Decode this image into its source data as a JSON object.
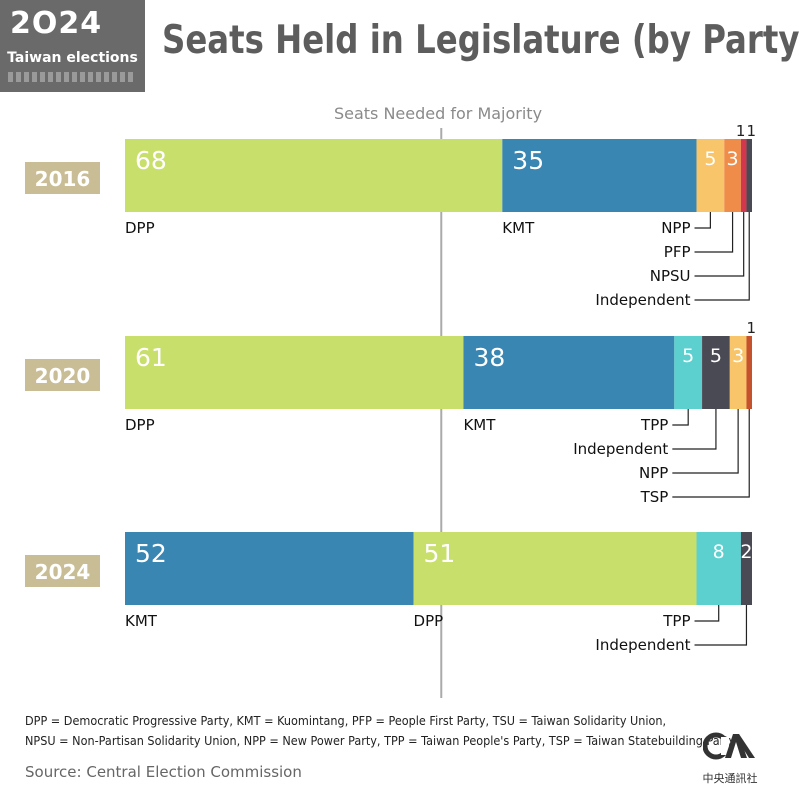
{
  "badge": {
    "year": "2O24",
    "subtitle": "Taiwan elections"
  },
  "header": {
    "title": "Seats Held in Legislature (by Party)"
  },
  "colors": {
    "DPP": "#c9df6b",
    "KMT": "#3a86b3",
    "NPP": "#f8c56a",
    "PFP": "#f08c4a",
    "NPSU": "#d2374d",
    "Independent": "#4a4a55",
    "TPP": "#5ccfcf",
    "TSP": "#c5512d",
    "year_badge": "#c9bd95",
    "majority_line": "#aaaaaa"
  },
  "chart_data": {
    "type": "bar",
    "orientation": "horizontal-stacked",
    "title": "Seats Held in Legislature (by Party)",
    "total_seats": 113,
    "majority_threshold": 57,
    "majority_label": "Seats Needed for Majority",
    "rows": [
      {
        "year": "2016",
        "segments": [
          {
            "party": "DPP",
            "value": 68,
            "label": "68"
          },
          {
            "party": "KMT",
            "value": 35,
            "label": "35"
          },
          {
            "party": "NPP",
            "value": 5,
            "label": "5"
          },
          {
            "party": "PFP",
            "value": 3,
            "label": "3"
          },
          {
            "party": "NPSU",
            "value": 1,
            "label": "1"
          },
          {
            "party": "Independent",
            "value": 1,
            "label": "1"
          }
        ]
      },
      {
        "year": "2020",
        "segments": [
          {
            "party": "DPP",
            "value": 61,
            "label": "61"
          },
          {
            "party": "KMT",
            "value": 38,
            "label": "38"
          },
          {
            "party": "TPP",
            "value": 5,
            "label": "5"
          },
          {
            "party": "Independent",
            "value": 5,
            "label": "5"
          },
          {
            "party": "NPP",
            "value": 3,
            "label": "3"
          },
          {
            "party": "TSP",
            "value": 1,
            "label": "1"
          }
        ]
      },
      {
        "year": "2024",
        "segments": [
          {
            "party": "KMT",
            "value": 52,
            "label": "52"
          },
          {
            "party": "DPP",
            "value": 51,
            "label": "51"
          },
          {
            "party": "TPP",
            "value": 8,
            "label": "8"
          },
          {
            "party": "Independent",
            "value": 2,
            "label": "2"
          }
        ]
      }
    ]
  },
  "footnote": {
    "line1": "DPP = Democratic Progressive Party, KMT = Kuomintang, PFP = People First Party, TSU = Taiwan Solidarity Union,",
    "line2": "NPSU = Non-Partisan Solidarity Union, NPP = New Power Party, TPP = Taiwan People's Party, TSP = Taiwan Statebuilding Party"
  },
  "source": "Source: Central Election Commission",
  "logo": {
    "text": "CNA",
    "subtitle": "中央通訊社"
  }
}
